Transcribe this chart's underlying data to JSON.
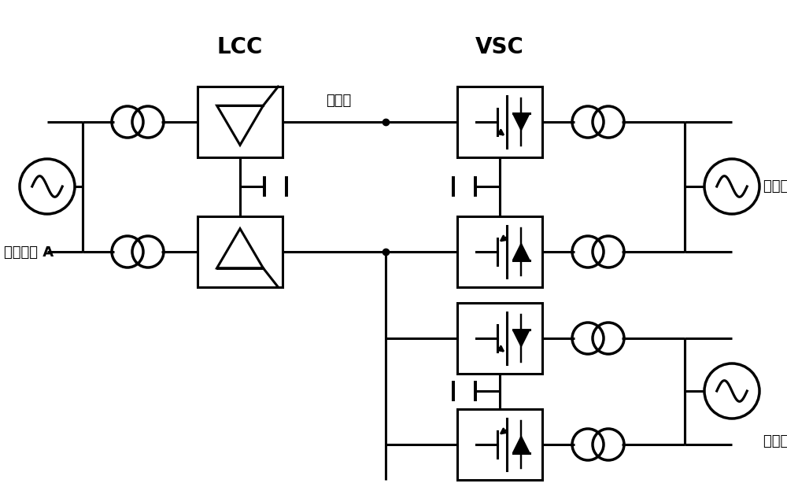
{
  "lcc_label": "LCC",
  "vsc_label": "VSC",
  "overhead_line_label": "架空线",
  "ac_grid_a_label": "交流电网 A",
  "ac_grid_b_label": "交流电网 B",
  "ac_grid_c_label": "交流电网 C",
  "bg_color": "#ffffff",
  "line_color": "#000000",
  "lw": 2.2
}
